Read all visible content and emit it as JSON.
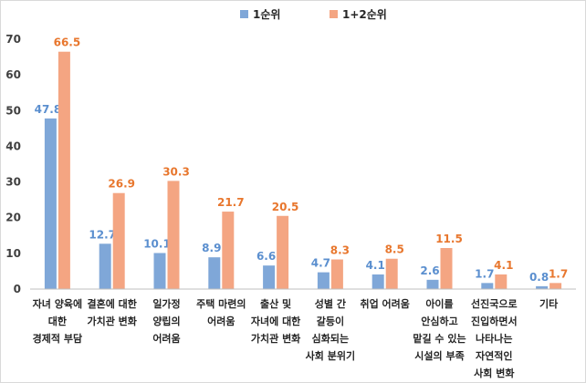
{
  "chart_data": {
    "type": "bar",
    "categories": [
      [
        "자녀 양육에",
        "대한",
        "경제적 부담"
      ],
      [
        "결혼에 대한",
        "가치관 변화"
      ],
      [
        "일가정",
        "양립의",
        "어려움"
      ],
      [
        "주택 마련의",
        "어려움"
      ],
      [
        "출산 및",
        "자녀에 대한",
        "가치관 변화"
      ],
      [
        "성별 간",
        "갈등이",
        "심화되는",
        "사회 분위기"
      ],
      [
        "취업 어려움"
      ],
      [
        "아이를",
        "안심하고",
        "맡길 수 있는",
        "시설의 부족"
      ],
      [
        "선진국으로",
        "진입하면서",
        "나타나는",
        "자연적인",
        "사회 변화"
      ],
      [
        "기타"
      ]
    ],
    "series": [
      {
        "name": "1순위",
        "color": "#7fa7d8",
        "label_color": "#5b8fcf",
        "values": [
          47.8,
          12.7,
          10.1,
          8.9,
          6.6,
          4.7,
          4.1,
          2.6,
          1.7,
          0.8
        ],
        "labels": [
          "47.8",
          "12.7",
          "10.1",
          "8.9",
          "6.6",
          "4.7",
          "4.1",
          "2.6",
          "1.7",
          "0.8"
        ]
      },
      {
        "name": "1+2순위",
        "color": "#f4a582",
        "label_color": "#e8772e",
        "values": [
          66.5,
          26.9,
          30.3,
          21.7,
          20.5,
          8.3,
          8.5,
          11.5,
          4.1,
          1.7
        ],
        "labels": [
          "66.5",
          "26.9",
          "30.3",
          "21.7",
          "20.5",
          "8.3",
          "8.5",
          "11.5",
          "4.1",
          "1.7"
        ]
      }
    ],
    "yticks": [
      "0",
      "10",
      "20",
      "30",
      "40",
      "50",
      "60",
      "70"
    ],
    "ylim": [
      0,
      70
    ],
    "legend": "top-center",
    "grid": false
  }
}
